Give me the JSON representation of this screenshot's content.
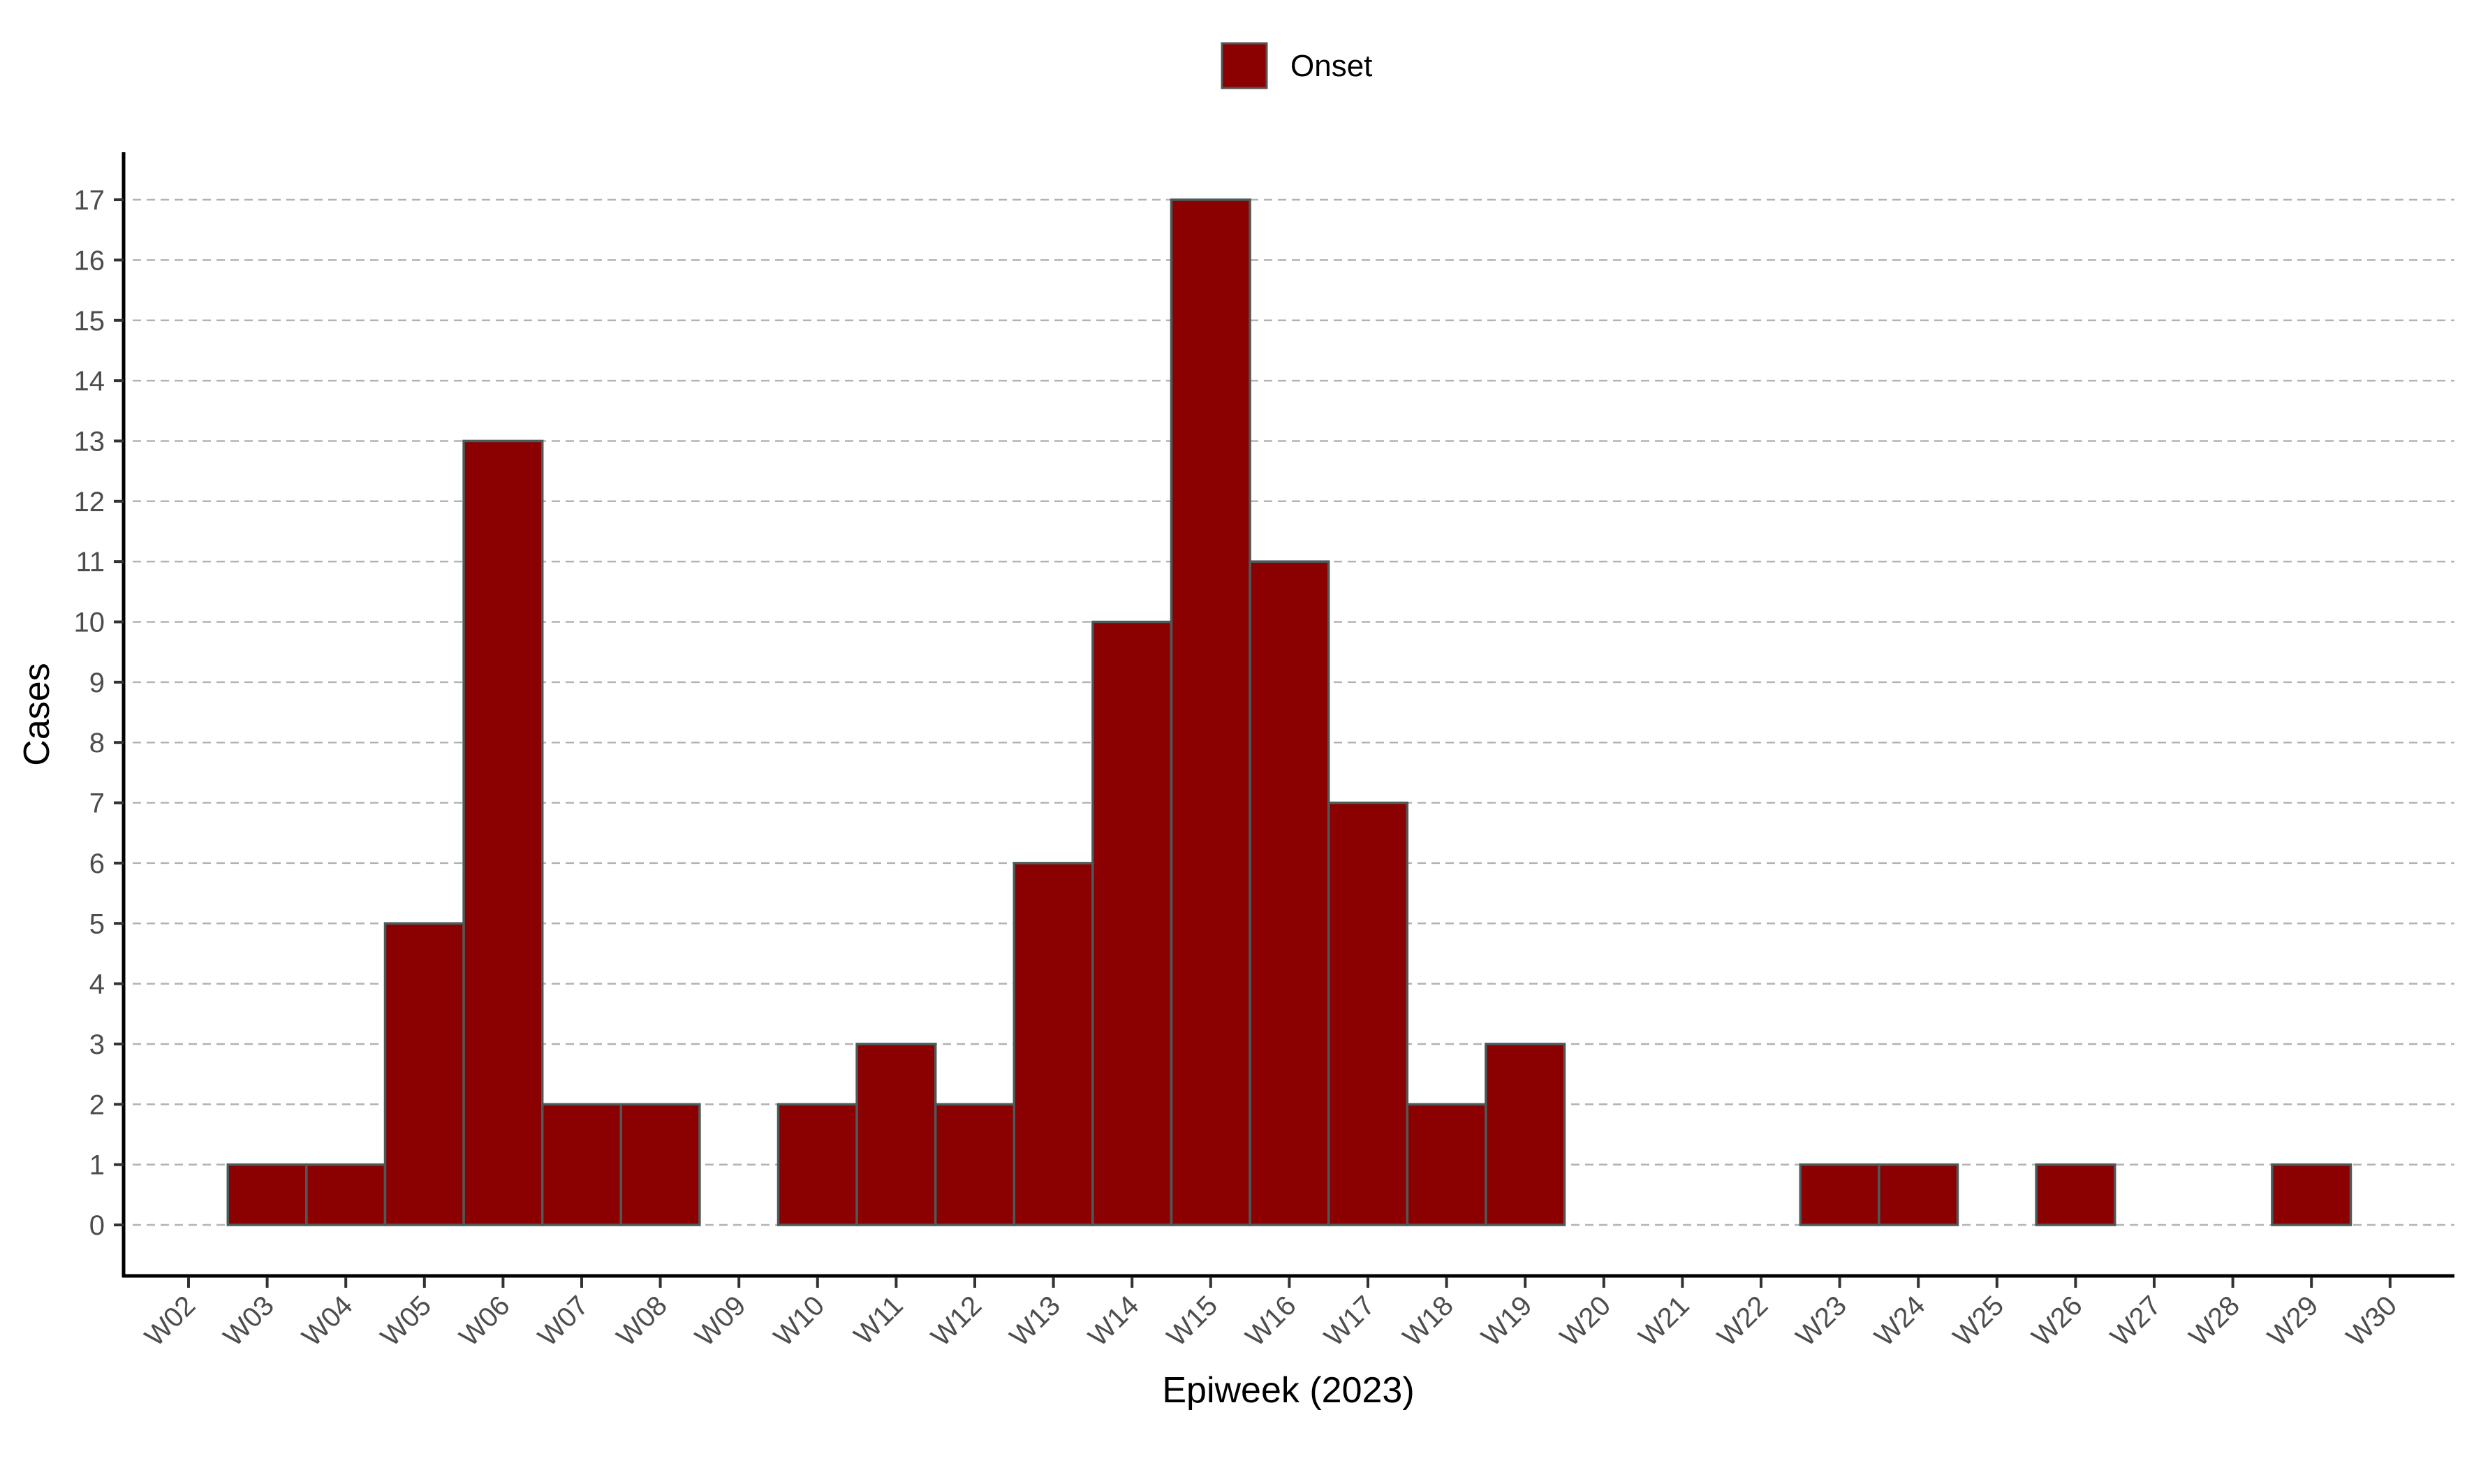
{
  "chart_data": {
    "type": "bar",
    "title": "",
    "xlabel": "Epiweek (2023)",
    "ylabel": "Cases",
    "legend": {
      "position": "top",
      "entries": [
        {
          "name": "Onset",
          "color": "#8b0000"
        }
      ]
    },
    "grid": {
      "y_major": true,
      "style": "dashed"
    },
    "ylim": [
      0,
      17
    ],
    "yticks": [
      0,
      1,
      2,
      3,
      4,
      5,
      6,
      7,
      8,
      9,
      10,
      11,
      12,
      13,
      14,
      15,
      16,
      17
    ],
    "categories": [
      "W02",
      "W03",
      "W04",
      "W05",
      "W06",
      "W07",
      "W08",
      "W09",
      "W10",
      "W11",
      "W12",
      "W13",
      "W14",
      "W15",
      "W16",
      "W17",
      "W18",
      "W19",
      "W20",
      "W21",
      "W22",
      "W23",
      "W24",
      "W25",
      "W26",
      "W27",
      "W28",
      "W29",
      "W30"
    ],
    "series": [
      {
        "name": "Onset",
        "color": "#8b0000",
        "bars": [
          {
            "from": "W02",
            "to": "W03",
            "value": 1
          },
          {
            "from": "W03",
            "to": "W04",
            "value": 1
          },
          {
            "from": "W04",
            "to": "W05",
            "value": 5
          },
          {
            "from": "W05",
            "to": "W06",
            "value": 13
          },
          {
            "from": "W06",
            "to": "W07",
            "value": 2
          },
          {
            "from": "W07",
            "to": "W08",
            "value": 2
          },
          {
            "from": "W09",
            "to": "W10",
            "value": 2
          },
          {
            "from": "W10",
            "to": "W11",
            "value": 3
          },
          {
            "from": "W11",
            "to": "W12",
            "value": 2
          },
          {
            "from": "W12",
            "to": "W13",
            "value": 6
          },
          {
            "from": "W13",
            "to": "W14",
            "value": 10
          },
          {
            "from": "W14",
            "to": "W15",
            "value": 17
          },
          {
            "from": "W15",
            "to": "W16",
            "value": 11
          },
          {
            "from": "W16",
            "to": "W17",
            "value": 7
          },
          {
            "from": "W17",
            "to": "W18",
            "value": 2
          },
          {
            "from": "W18",
            "to": "W19",
            "value": 3
          },
          {
            "from": "W22",
            "to": "W23",
            "value": 1
          },
          {
            "from": "W23",
            "to": "W24",
            "value": 1
          },
          {
            "from": "W25",
            "to": "W26",
            "value": 1
          },
          {
            "from": "W28",
            "to": "W29",
            "value": 1
          }
        ]
      }
    ]
  }
}
